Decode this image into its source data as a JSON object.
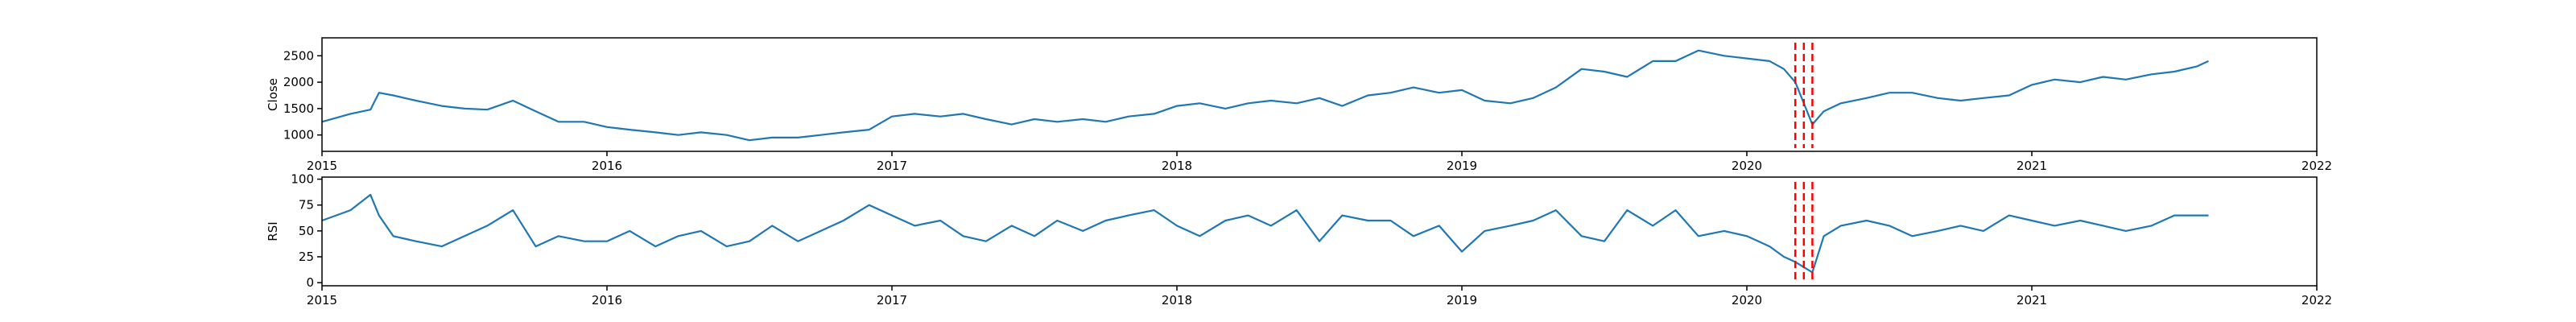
{
  "chart_data": [
    {
      "type": "line",
      "ylabel": "Close",
      "xlim": [
        2015,
        2022
      ],
      "xticks": [
        2015,
        2016,
        2017,
        2018,
        2019,
        2020,
        2021,
        2022
      ],
      "ylim": [
        690,
        2840
      ],
      "yticks": [
        1000,
        1500,
        2000,
        2500
      ],
      "x": [
        2015,
        2015.1,
        2015.17,
        2015.2,
        2015.25,
        2015.33,
        2015.42,
        2015.5,
        2015.58,
        2015.67,
        2015.75,
        2015.83,
        2015.92,
        2016,
        2016.08,
        2016.17,
        2016.25,
        2016.33,
        2016.42,
        2016.5,
        2016.58,
        2016.67,
        2016.75,
        2016.83,
        2016.92,
        2017,
        2017.08,
        2017.17,
        2017.25,
        2017.33,
        2017.42,
        2017.5,
        2017.58,
        2017.67,
        2017.75,
        2017.83,
        2017.92,
        2018,
        2018.08,
        2018.17,
        2018.25,
        2018.33,
        2018.42,
        2018.5,
        2018.58,
        2018.67,
        2018.75,
        2018.83,
        2018.92,
        2019,
        2019.08,
        2019.17,
        2019.25,
        2019.33,
        2019.42,
        2019.5,
        2019.58,
        2019.67,
        2019.75,
        2019.83,
        2019.92,
        2020,
        2020.08,
        2020.13,
        2020.17,
        2020.2,
        2020.23,
        2020.27,
        2020.33,
        2020.42,
        2020.5,
        2020.58,
        2020.67,
        2020.75,
        2020.83,
        2020.92,
        2021,
        2021.08,
        2021.17,
        2021.25,
        2021.33,
        2021.42,
        2021.5,
        2021.58,
        2021.62
      ],
      "series": [
        {
          "color": "#1f77b4",
          "values": [
            1250,
            1400,
            1480,
            1800,
            1750,
            1650,
            1550,
            1500,
            1480,
            1650,
            1450,
            1250,
            1250,
            1150,
            1100,
            1050,
            1000,
            1050,
            1000,
            900,
            950,
            950,
            1000,
            1050,
            1100,
            1350,
            1400,
            1350,
            1400,
            1300,
            1200,
            1300,
            1250,
            1300,
            1250,
            1350,
            1400,
            1550,
            1600,
            1500,
            1600,
            1650,
            1600,
            1700,
            1550,
            1750,
            1800,
            1900,
            1800,
            1850,
            1650,
            1600,
            1700,
            1900,
            2250,
            2200,
            2100,
            2400,
            2400,
            2600,
            2500,
            2450,
            2400,
            2250,
            2000,
            1600,
            1200,
            1450,
            1600,
            1700,
            1800,
            1800,
            1700,
            1650,
            1700,
            1750,
            1950,
            2050,
            2000,
            2100,
            2050,
            2150,
            2200,
            2300,
            2400
          ]
        }
      ],
      "vlines": [
        2020.17,
        2020.2,
        2020.23
      ],
      "vline_color": "#ff0000"
    },
    {
      "type": "line",
      "ylabel": "RSI",
      "xlim": [
        2015,
        2022
      ],
      "xticks": [
        2015,
        2016,
        2017,
        2018,
        2019,
        2020,
        2021,
        2022
      ],
      "ylim": [
        -3,
        102
      ],
      "yticks": [
        0,
        25,
        50,
        75,
        100
      ],
      "x": [
        2015,
        2015.1,
        2015.17,
        2015.2,
        2015.25,
        2015.33,
        2015.42,
        2015.5,
        2015.58,
        2015.67,
        2015.75,
        2015.83,
        2015.92,
        2016,
        2016.08,
        2016.17,
        2016.25,
        2016.33,
        2016.42,
        2016.5,
        2016.58,
        2016.67,
        2016.75,
        2016.83,
        2016.92,
        2017,
        2017.08,
        2017.17,
        2017.25,
        2017.33,
        2017.42,
        2017.5,
        2017.58,
        2017.67,
        2017.75,
        2017.83,
        2017.92,
        2018,
        2018.08,
        2018.17,
        2018.25,
        2018.33,
        2018.42,
        2018.5,
        2018.58,
        2018.67,
        2018.75,
        2018.83,
        2018.92,
        2019,
        2019.08,
        2019.17,
        2019.25,
        2019.33,
        2019.42,
        2019.5,
        2019.58,
        2019.67,
        2019.75,
        2019.83,
        2019.92,
        2020,
        2020.08,
        2020.13,
        2020.17,
        2020.2,
        2020.23,
        2020.27,
        2020.33,
        2020.42,
        2020.5,
        2020.58,
        2020.67,
        2020.75,
        2020.83,
        2020.92,
        2021,
        2021.08,
        2021.17,
        2021.25,
        2021.33,
        2021.42,
        2021.5,
        2021.58,
        2021.62
      ],
      "series": [
        {
          "color": "#1f77b4",
          "values": [
            60,
            70,
            85,
            65,
            45,
            40,
            35,
            45,
            55,
            70,
            35,
            45,
            40,
            40,
            50,
            35,
            45,
            50,
            35,
            40,
            55,
            40,
            50,
            60,
            75,
            65,
            55,
            60,
            45,
            40,
            55,
            45,
            60,
            50,
            60,
            65,
            70,
            55,
            45,
            60,
            65,
            55,
            70,
            40,
            65,
            60,
            60,
            45,
            55,
            30,
            50,
            55,
            60,
            70,
            45,
            40,
            70,
            55,
            70,
            45,
            50,
            45,
            35,
            25,
            20,
            15,
            10,
            45,
            55,
            60,
            55,
            45,
            50,
            55,
            50,
            65,
            60,
            55,
            60,
            55,
            50,
            55,
            65,
            65,
            65
          ]
        }
      ],
      "vlines": [
        2020.17,
        2020.2,
        2020.23
      ],
      "vline_color": "#ff0000"
    }
  ]
}
